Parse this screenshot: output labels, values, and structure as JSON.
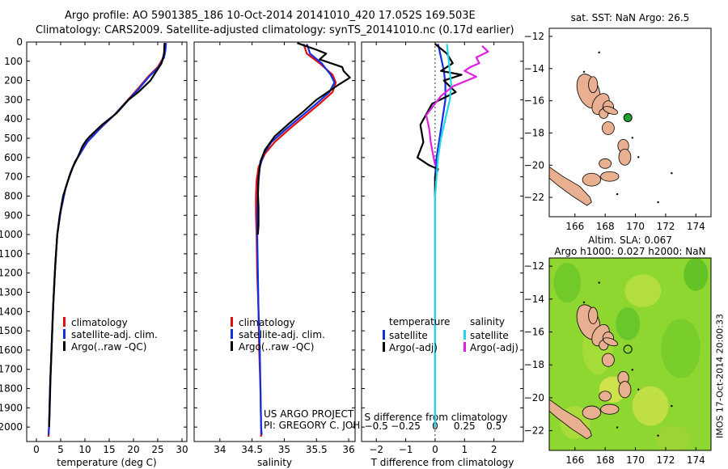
{
  "header": {
    "line1": "Argo profile: AO 5901385_186 10-Oct-2014 20141010_420 17.052S 169.503E",
    "line2": "Climatology: CARS2009. Satellite-adjusted climatology: synTS_20141010.nc (0.17d earlier)"
  },
  "sidebar_text": "IMOS 17-Oct-2014 20:00:33",
  "credit": {
    "line1": "US ARGO PROJECT",
    "line2": "PI: GREGORY C. JOHNSON"
  },
  "colors": {
    "climatology": "#e01010",
    "satellite": "#1030e0",
    "argo": "#000000",
    "salinity_satellite": "#20d8e8",
    "salinity_argo": "#e020e0",
    "land": "#e8b090",
    "sst_marker": "#20a030"
  },
  "chart_data": [
    {
      "type": "line",
      "xlabel": "temperature (deg C)",
      "xlim": [
        -2,
        31
      ],
      "xticks": [
        0,
        5,
        10,
        15,
        20,
        25,
        30
      ],
      "ylim": [
        0,
        2075
      ],
      "yticks": [
        0,
        100,
        200,
        300,
        400,
        500,
        600,
        700,
        800,
        900,
        1000,
        1100,
        1200,
        1300,
        1400,
        1500,
        1600,
        1700,
        1800,
        1900,
        2000
      ],
      "legend": [
        "climatology",
        "satellite-adj. clim.",
        "Argo(..raw -QC)"
      ],
      "series": [
        {
          "name": "climatology",
          "color": "#e01010",
          "points": [
            [
              26.6,
              5
            ],
            [
              26.4,
              40
            ],
            [
              26.2,
              80
            ],
            [
              25,
              130
            ],
            [
              23,
              180
            ],
            [
              21,
              240
            ],
            [
              18.5,
              310
            ],
            [
              16,
              380
            ],
            [
              13.5,
              440
            ],
            [
              11.5,
              490
            ],
            [
              10.5,
              520
            ],
            [
              9,
              580
            ],
            [
              8,
              620
            ],
            [
              7,
              680
            ],
            [
              6,
              760
            ],
            [
              5,
              880
            ],
            [
              4.3,
              1000
            ],
            [
              3.8,
              1200
            ],
            [
              3.4,
              1400
            ],
            [
              3.1,
              1600
            ],
            [
              2.8,
              1800
            ],
            [
              2.6,
              2000
            ],
            [
              2.5,
              2050
            ]
          ]
        },
        {
          "name": "satellite-adj. clim.",
          "color": "#1030e0",
          "points": [
            [
              26.7,
              5
            ],
            [
              26.6,
              40
            ],
            [
              26.3,
              80
            ],
            [
              25.2,
              130
            ],
            [
              23.2,
              180
            ],
            [
              21.2,
              240
            ],
            [
              18.6,
              310
            ],
            [
              16,
              380
            ],
            [
              13.4,
              440
            ],
            [
              11.6,
              490
            ],
            [
              10.4,
              520
            ],
            [
              9,
              580
            ],
            [
              8,
              620
            ],
            [
              7,
              680
            ],
            [
              6,
              760
            ],
            [
              5,
              880
            ],
            [
              4.3,
              1000
            ],
            [
              3.8,
              1200
            ],
            [
              3.4,
              1400
            ],
            [
              3.1,
              1600
            ],
            [
              2.8,
              1800
            ],
            [
              2.6,
              2000
            ],
            [
              2.5,
              2040
            ]
          ]
        },
        {
          "name": "Argo(..raw -QC)",
          "color": "#000000",
          "points": [
            [
              26.4,
              5
            ],
            [
              26.3,
              60
            ],
            [
              25.8,
              110
            ],
            [
              24.5,
              160
            ],
            [
              23.5,
              200
            ],
            [
              21,
              260
            ],
            [
              19,
              300
            ],
            [
              16.5,
              370
            ],
            [
              13.5,
              430
            ],
            [
              11,
              490
            ],
            [
              10.3,
              510
            ],
            [
              9.5,
              540
            ],
            [
              8.5,
              600
            ],
            [
              7.5,
              650
            ],
            [
              6.5,
              720
            ],
            [
              5.5,
              800
            ],
            [
              4.8,
              900
            ],
            [
              4.3,
              1000
            ],
            [
              3.9,
              1150
            ],
            [
              3.5,
              1350
            ],
            [
              3.2,
              1550
            ],
            [
              2.9,
              1750
            ],
            [
              2.7,
              1950
            ],
            [
              2.6,
              2000
            ]
          ]
        }
      ]
    },
    {
      "type": "line",
      "xlabel": "salinity",
      "xlim": [
        33.6,
        36.1
      ],
      "xticks": [
        34,
        34.5,
        35,
        35.5,
        36
      ],
      "ylim": [
        0,
        2075
      ],
      "legend": [
        "climatology",
        "satellite-adj. clim.",
        "Argo(..raw -QC)"
      ],
      "series": [
        {
          "name": "climatology",
          "color": "#e01010",
          "points": [
            [
              35.3,
              10
            ],
            [
              35.35,
              60
            ],
            [
              35.55,
              110
            ],
            [
              35.75,
              170
            ],
            [
              35.8,
              210
            ],
            [
              35.75,
              260
            ],
            [
              35.55,
              320
            ],
            [
              35.3,
              390
            ],
            [
              35.05,
              460
            ],
            [
              34.85,
              520
            ],
            [
              34.7,
              580
            ],
            [
              34.6,
              650
            ],
            [
              34.57,
              720
            ],
            [
              34.56,
              800
            ],
            [
              34.56,
              900
            ],
            [
              34.57,
              1000
            ],
            [
              34.58,
              1200
            ],
            [
              34.6,
              1400
            ],
            [
              34.61,
              1600
            ],
            [
              34.63,
              1800
            ],
            [
              34.64,
              2000
            ],
            [
              34.64,
              2050
            ]
          ]
        },
        {
          "name": "satellite-adj. clim.",
          "color": "#1030e0",
          "points": [
            [
              35.35,
              10
            ],
            [
              35.4,
              60
            ],
            [
              35.58,
              110
            ],
            [
              35.72,
              170
            ],
            [
              35.78,
              210
            ],
            [
              35.7,
              260
            ],
            [
              35.5,
              320
            ],
            [
              35.25,
              390
            ],
            [
              35.0,
              460
            ],
            [
              34.8,
              520
            ],
            [
              34.68,
              580
            ],
            [
              34.62,
              650
            ],
            [
              34.6,
              720
            ],
            [
              34.59,
              800
            ],
            [
              34.58,
              900
            ],
            [
              34.58,
              1000
            ],
            [
              34.59,
              1200
            ],
            [
              34.6,
              1400
            ],
            [
              34.62,
              1600
            ],
            [
              34.63,
              1800
            ],
            [
              34.64,
              2000
            ],
            [
              34.65,
              2040
            ]
          ]
        },
        {
          "name": "Argo(..raw -QC)",
          "color": "#000000",
          "points": [
            [
              35.2,
              5
            ],
            [
              35.5,
              40
            ],
            [
              35.65,
              60
            ],
            [
              35.55,
              90
            ],
            [
              35.9,
              130
            ],
            [
              35.92,
              150
            ],
            [
              36.02,
              185
            ],
            [
              35.85,
              220
            ],
            [
              35.72,
              250
            ],
            [
              35.5,
              300
            ],
            [
              35.3,
              360
            ],
            [
              35.05,
              430
            ],
            [
              34.85,
              490
            ],
            [
              34.7,
              560
            ],
            [
              34.63,
              620
            ],
            [
              34.6,
              700
            ],
            [
              34.59,
              780
            ],
            [
              34.6,
              860
            ],
            [
              34.6,
              950
            ],
            [
              34.59,
              1000
            ]
          ]
        }
      ]
    },
    {
      "type": "line",
      "xlabel": "T difference from climatology",
      "xlabel2": "S difference from climatology",
      "xlim": [
        -2.5,
        3.0
      ],
      "xticks": [
        -2,
        -1,
        0,
        1,
        2
      ],
      "xticks2": [
        -0.5,
        -0.25,
        0,
        0.25,
        0.5
      ],
      "ylim": [
        0,
        2075
      ],
      "legend_temperature": {
        "header": "temperature",
        "entries": [
          "satellite",
          "Argo(-adj)"
        ]
      },
      "legend_salinity": {
        "header": "salinity",
        "entries": [
          "satellite",
          "Argo(-adj)"
        ]
      },
      "series": [
        {
          "name": "temperature satellite",
          "color": "#1030e0",
          "points": [
            [
              0.1,
              10
            ],
            [
              0.2,
              80
            ],
            [
              0.3,
              150
            ],
            [
              0.35,
              220
            ],
            [
              0.35,
              300
            ],
            [
              0.25,
              400
            ],
            [
              0.15,
              500
            ],
            [
              0.05,
              600
            ],
            [
              0,
              700
            ],
            [
              0,
              900
            ],
            [
              0,
              1200
            ],
            [
              0,
              1500
            ],
            [
              0,
              1800
            ],
            [
              0,
              2000
            ]
          ]
        },
        {
          "name": "temperature Argo(-adj)",
          "color": "#000000",
          "points": [
            [
              0,
              10
            ],
            [
              0.4,
              60
            ],
            [
              0.6,
              110
            ],
            [
              0.2,
              150
            ],
            [
              0.9,
              170
            ],
            [
              0.3,
              200
            ],
            [
              0.7,
              260
            ],
            [
              -0.1,
              320
            ],
            [
              -0.5,
              430
            ],
            [
              -0.4,
              520
            ],
            [
              -0.6,
              600
            ],
            [
              -0.2,
              640
            ],
            [
              0.1,
              660
            ],
            [
              0,
              700
            ],
            [
              0,
              800
            ]
          ]
        },
        {
          "name": "salinity satellite",
          "color": "#20d8e8",
          "points": [
            [
              0.4,
              10
            ],
            [
              0.45,
              80
            ],
            [
              0.5,
              150
            ],
            [
              0.55,
              220
            ],
            [
              0.5,
              300
            ],
            [
              0.35,
              400
            ],
            [
              0.2,
              500
            ],
            [
              0.1,
              600
            ],
            [
              0.05,
              700
            ],
            [
              0,
              800
            ],
            [
              0,
              1000
            ],
            [
              0,
              1300
            ],
            [
              0,
              1600
            ],
            [
              0,
              1900
            ],
            [
              0,
              2000
            ]
          ]
        },
        {
          "name": "salinity Argo(-adj)",
          "color": "#e020e0",
          "points": [
            [
              1.6,
              20
            ],
            [
              1.8,
              50
            ],
            [
              1.4,
              80
            ],
            [
              1.5,
              110
            ],
            [
              1.2,
              130
            ],
            [
              1.0,
              150
            ],
            [
              1.4,
              180
            ],
            [
              0.6,
              230
            ],
            [
              0.2,
              280
            ],
            [
              0.0,
              320
            ],
            [
              -0.3,
              380
            ],
            [
              -0.2,
              450
            ],
            [
              -0.15,
              520
            ],
            [
              -0.05,
              600
            ],
            [
              0,
              640
            ]
          ]
        }
      ]
    },
    {
      "type": "scatter",
      "title": "sat. SST: NaN  Argo: 26.5",
      "xlim": [
        164.3,
        175
      ],
      "ylim": [
        -23.2,
        -11.5
      ],
      "xticks": [
        166,
        168,
        170,
        172,
        174
      ],
      "yticks": [
        -12,
        -14,
        -16,
        -18,
        -20,
        -22
      ],
      "marker": {
        "lon": 169.5,
        "lat": -17.05,
        "color": "#20a030"
      }
    },
    {
      "type": "heatmap",
      "title_line1": "Altim. SLA: 0.067",
      "title_line2": "Argo h1000: 0.027 h2000: NaN",
      "xlim": [
        164.3,
        175
      ],
      "ylim": [
        -23.2,
        -11.5
      ],
      "xticks": [
        166,
        168,
        170,
        172,
        174
      ],
      "yticks": [
        -12,
        -14,
        -16,
        -18,
        -20,
        -22
      ],
      "marker": {
        "lon": 169.5,
        "lat": -17.05
      }
    }
  ]
}
